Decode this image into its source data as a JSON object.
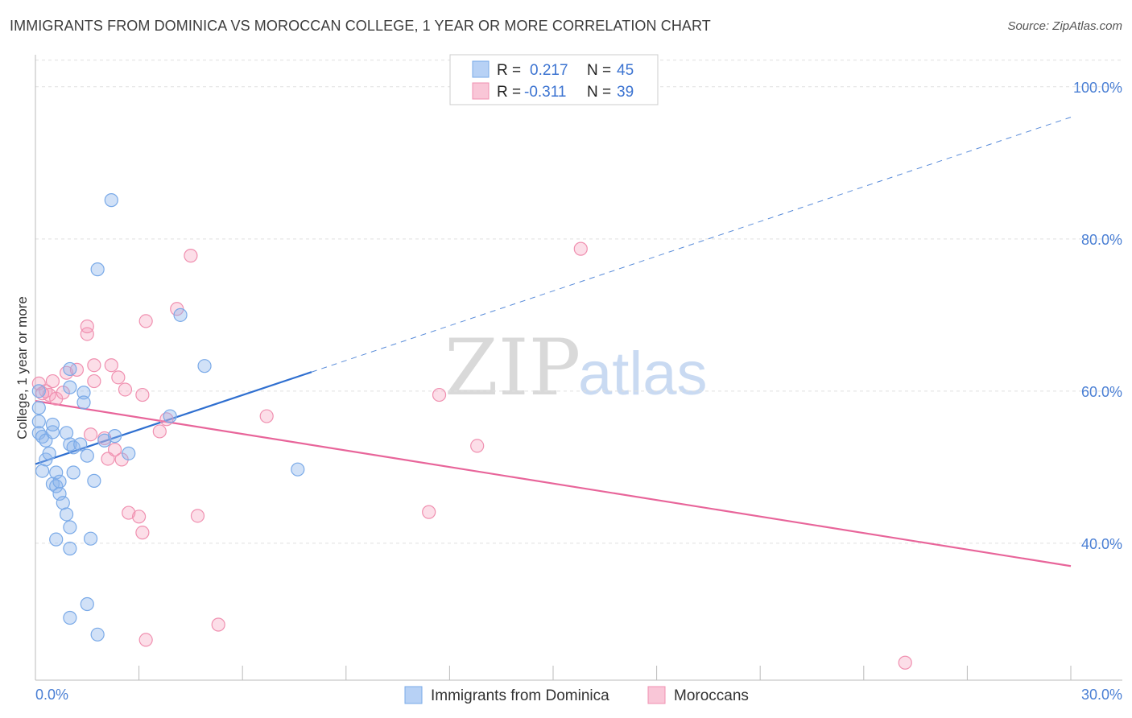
{
  "title": "IMMIGRANTS FROM DOMINICA VS MOROCCAN COLLEGE, 1 YEAR OR MORE CORRELATION CHART",
  "source": "Source: ZipAtlas.com",
  "watermark": {
    "zip": "ZIP",
    "atlas": "atlas"
  },
  "colors": {
    "blue": "#7aaae8",
    "pink": "#f090b0",
    "blue_line": "#2f6fd0",
    "pink_line": "#e8659a",
    "grid": "#e0e0e0",
    "axis": "#bbbbbb"
  },
  "legend": {
    "rows": [
      {
        "r_label": "R =",
        "r_value": "0.217",
        "n_label": "N =",
        "n_value": "45"
      },
      {
        "r_label": "R =",
        "r_value": "-0.311",
        "n_label": "N =",
        "n_value": "39"
      }
    ]
  },
  "bottom_legend": [
    "Immigrants from Dominica",
    "Moroccans"
  ],
  "chart_data": {
    "type": "scatter",
    "xlabel": "",
    "ylabel": "College, 1 year or more",
    "xlim": [
      0,
      30
    ],
    "ylim": [
      22,
      104
    ],
    "x_tick_labels": [
      "0.0%",
      "30.0%"
    ],
    "y_ticks": [
      40,
      60,
      80,
      100
    ],
    "y_tick_labels": [
      "40.0%",
      "60.0%",
      "80.0%",
      "100.0%"
    ],
    "series": [
      {
        "name": "Immigrants from Dominica",
        "R": 0.217,
        "N": 45,
        "points": [
          [
            0.1,
            57.8
          ],
          [
            0.1,
            56.0
          ],
          [
            0.1,
            54.5
          ],
          [
            0.2,
            54.0
          ],
          [
            0.3,
            53.5
          ],
          [
            0.3,
            51.0
          ],
          [
            0.2,
            49.5
          ],
          [
            0.4,
            51.8
          ],
          [
            0.5,
            54.6
          ],
          [
            0.5,
            47.8
          ],
          [
            0.6,
            47.5
          ],
          [
            0.6,
            49.3
          ],
          [
            0.7,
            46.5
          ],
          [
            0.7,
            48.1
          ],
          [
            0.8,
            45.3
          ],
          [
            0.9,
            43.8
          ],
          [
            0.5,
            55.6
          ],
          [
            0.9,
            54.5
          ],
          [
            1.0,
            53.0
          ],
          [
            1.1,
            52.6
          ],
          [
            1.1,
            49.3
          ],
          [
            1.0,
            62.9
          ],
          [
            1.0,
            60.5
          ],
          [
            1.3,
            53.0
          ],
          [
            1.4,
            59.8
          ],
          [
            1.4,
            58.5
          ],
          [
            1.5,
            51.5
          ],
          [
            1.0,
            39.3
          ],
          [
            0.6,
            40.5
          ],
          [
            1.0,
            42.1
          ],
          [
            1.7,
            48.2
          ],
          [
            1.6,
            40.6
          ],
          [
            2.0,
            53.5
          ],
          [
            2.3,
            54.1
          ],
          [
            2.7,
            51.8
          ],
          [
            2.2,
            85.1
          ],
          [
            1.8,
            76.0
          ],
          [
            1.8,
            28.0
          ],
          [
            1.0,
            30.2
          ],
          [
            1.5,
            32.0
          ],
          [
            3.9,
            56.7
          ],
          [
            4.2,
            70.0
          ],
          [
            4.9,
            63.3
          ],
          [
            7.6,
            49.7
          ],
          [
            0.1,
            60.0
          ]
        ],
        "trend": {
          "x": [
            0,
            8
          ],
          "y": [
            50.4,
            62.5
          ],
          "dashed_to": [
            30,
            96.0
          ]
        }
      },
      {
        "name": "Moroccans",
        "R": -0.311,
        "N": 39,
        "points": [
          [
            0.1,
            61.0
          ],
          [
            0.3,
            60.0
          ],
          [
            0.4,
            59.5
          ],
          [
            0.5,
            61.3
          ],
          [
            0.6,
            59.0
          ],
          [
            0.8,
            59.8
          ],
          [
            0.9,
            62.4
          ],
          [
            1.2,
            62.8
          ],
          [
            1.5,
            67.5
          ],
          [
            1.5,
            68.5
          ],
          [
            1.6,
            54.3
          ],
          [
            1.7,
            61.3
          ],
          [
            1.7,
            63.4
          ],
          [
            2.0,
            53.8
          ],
          [
            2.1,
            51.1
          ],
          [
            2.2,
            63.4
          ],
          [
            2.3,
            52.3
          ],
          [
            2.4,
            61.8
          ],
          [
            2.5,
            51.0
          ],
          [
            2.6,
            60.2
          ],
          [
            2.7,
            44.0
          ],
          [
            3.0,
            43.5
          ],
          [
            3.1,
            41.4
          ],
          [
            3.1,
            59.5
          ],
          [
            3.2,
            69.2
          ],
          [
            3.6,
            54.7
          ],
          [
            3.8,
            56.3
          ],
          [
            4.1,
            70.8
          ],
          [
            4.5,
            77.8
          ],
          [
            4.7,
            43.6
          ],
          [
            5.3,
            29.3
          ],
          [
            6.7,
            56.7
          ],
          [
            3.2,
            27.3
          ],
          [
            11.4,
            44.1
          ],
          [
            11.7,
            59.5
          ],
          [
            12.8,
            52.8
          ],
          [
            15.8,
            78.7
          ],
          [
            25.2,
            24.3
          ],
          [
            0.2,
            59.7
          ]
        ],
        "trend": {
          "x": [
            0,
            30
          ],
          "y": [
            58.7,
            37.0
          ]
        }
      }
    ]
  }
}
